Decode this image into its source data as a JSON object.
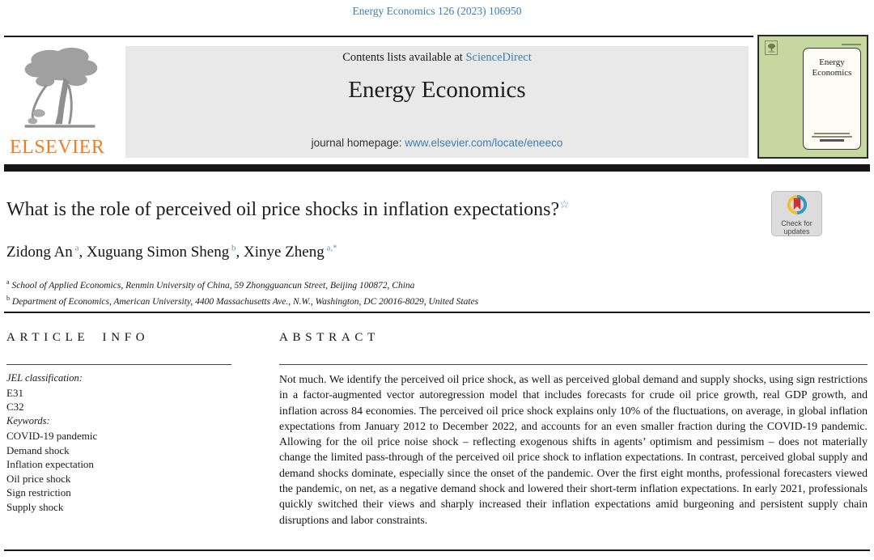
{
  "page": {
    "citation": "Energy Economics 126 (2023) 106950"
  },
  "header": {
    "contents_prefix": "Contents lists available at ",
    "sciencedirect_link": "ScienceDirect",
    "journal_name": "Energy Economics",
    "homepage_prefix": "journal homepage: ",
    "homepage_url": "www.elsevier.com/locate/eneeco",
    "elsevier_label": "ELSEVIER",
    "cover": {
      "title_line1": "Energy",
      "title_line2": "Economics"
    }
  },
  "article": {
    "title": "What is the role of perceived oil price shocks in inflation expectations?",
    "title_mark": "☆",
    "authors": [
      {
        "name": "Zidong An",
        "sup": "a"
      },
      {
        "name": "Xuguang Simon Sheng",
        "sup": "b"
      },
      {
        "name": "Xinye Zheng",
        "sup": "a,*"
      }
    ],
    "affiliations": [
      {
        "sup": "a",
        "text": "School of Applied Economics, Renmin University of China, 59 Zhongguancun Street, Beijing 100872, China"
      },
      {
        "sup": "b",
        "text": "Department of Economics, American University, 4400 Massachusetts Ave., N.W., Washington, DC 20016-8029, United States"
      }
    ],
    "check_updates": {
      "line1": "Check for",
      "line2": "updates"
    }
  },
  "article_info": {
    "heading": "ARTICLE INFO",
    "jel_label": "JEL classification:",
    "jel_codes": [
      "E31",
      "C32"
    ],
    "keywords_label": "Keywords:",
    "keywords": [
      "COVID-19 pandemic",
      "Demand shock",
      "Inflation expectation",
      "Oil price shock",
      "Sign restriction",
      "Supply shock"
    ]
  },
  "abstract": {
    "heading": "ABSTRACT",
    "text": "Not much. We identify the perceived oil price shock, as well as perceived global demand and supply shocks, using sign restrictions in a factor-augmented vector autoregression model that includes forecasts for crude oil price growth, real GDP growth, and inflation across 84 economies. The perceived oil price shock explains only 10% of the fluctuations, on average, in global inflation expectations from January 2012 to December 2022, and accounts for an even smaller fraction during the COVID-19 pandemic. Allowing for the oil price noise shock – reflecting exogenous shifts in agents’ optimism and pessimism – does not materially change the limited pass-through of the perceived oil price shock to inflation expectations. In contrast, perceived global supply and demand shocks dominate, especially since the onset of the pandemic. Over the first eight months, professional forecasters viewed the pandemic, on net, as a negative demand shock and lowered their short-term inflation expectations. In early 2021, professionals quickly switched their views and sharply increased their inflation expectations amid burgeoning and persistent supply chain disruptions and labor constraints."
  },
  "colors": {
    "link_blue": "#3b7eb5",
    "sup_blue": "#5b94cc",
    "elsevier_orange": "#f47b20",
    "banner_gray": "#e9e9e9",
    "cover_green": "#c6d8a0",
    "badge_red": "#c8323f",
    "badge_blue": "#2f9bc4",
    "badge_yellow": "#f0c02f"
  }
}
